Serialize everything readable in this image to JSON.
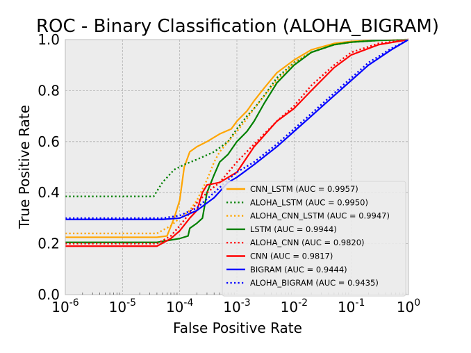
{
  "chart_data": {
    "type": "line",
    "title": "ROC - Binary Classification (ALOHA_BIGRAM)",
    "xlabel": "False Positive Rate",
    "ylabel": "True Positive Rate",
    "x_scale": "log",
    "xlim": [
      1e-06,
      1
    ],
    "ylim": [
      0.0,
      1.0
    ],
    "x_ticks": [
      {
        "value": 1e-06,
        "base": "10",
        "exp": "-6"
      },
      {
        "value": 1e-05,
        "base": "10",
        "exp": "-5"
      },
      {
        "value": 0.0001,
        "base": "10",
        "exp": "-4"
      },
      {
        "value": 0.001,
        "base": "10",
        "exp": "-3"
      },
      {
        "value": 0.01,
        "base": "10",
        "exp": "-2"
      },
      {
        "value": 0.1,
        "base": "10",
        "exp": "-1"
      },
      {
        "value": 1,
        "base": "10",
        "exp": "0"
      }
    ],
    "y_ticks": [
      "0.0",
      "0.2",
      "0.4",
      "0.6",
      "0.8",
      "1.0"
    ],
    "grid": true,
    "legend_position": "lower-right",
    "series": [
      {
        "name": "CNN_LSTM (AUC = 0.9957)",
        "color": "#FFA500",
        "dash": "solid",
        "points": [
          [
            1e-06,
            0.225
          ],
          [
            4e-05,
            0.225
          ],
          [
            6e-05,
            0.23
          ],
          [
            8e-05,
            0.3
          ],
          [
            0.0001,
            0.37
          ],
          [
            0.00012,
            0.5
          ],
          [
            0.00015,
            0.56
          ],
          [
            0.0002,
            0.58
          ],
          [
            0.0003,
            0.6
          ],
          [
            0.0005,
            0.63
          ],
          [
            0.0008,
            0.65
          ],
          [
            0.001,
            0.68
          ],
          [
            0.0015,
            0.72
          ],
          [
            0.002,
            0.76
          ],
          [
            0.003,
            0.81
          ],
          [
            0.005,
            0.87
          ],
          [
            0.01,
            0.92
          ],
          [
            0.02,
            0.96
          ],
          [
            0.05,
            0.985
          ],
          [
            0.1,
            0.993
          ],
          [
            0.3,
            0.998
          ],
          [
            1,
            1.0
          ]
        ]
      },
      {
        "name": "ALOHA_LSTM (AUC = 0.9950)",
        "color": "#008000",
        "dash": "dotted",
        "points": [
          [
            1e-06,
            0.385
          ],
          [
            3.5e-05,
            0.385
          ],
          [
            5e-05,
            0.44
          ],
          [
            8e-05,
            0.49
          ],
          [
            0.00012,
            0.51
          ],
          [
            0.0002,
            0.53
          ],
          [
            0.0004,
            0.56
          ],
          [
            0.0007,
            0.6
          ],
          [
            0.001,
            0.65
          ],
          [
            0.0015,
            0.7
          ],
          [
            0.002,
            0.73
          ],
          [
            0.003,
            0.78
          ],
          [
            0.005,
            0.85
          ],
          [
            0.01,
            0.91
          ],
          [
            0.02,
            0.95
          ],
          [
            0.05,
            0.98
          ],
          [
            0.1,
            0.99
          ],
          [
            0.3,
            0.997
          ],
          [
            1,
            1.0
          ]
        ]
      },
      {
        "name": "ALOHA_CNN_LSTM (AUC = 0.9947)",
        "color": "#FFA500",
        "dash": "dotted",
        "points": [
          [
            1e-06,
            0.24
          ],
          [
            4e-05,
            0.24
          ],
          [
            7e-05,
            0.27
          ],
          [
            0.0001,
            0.3
          ],
          [
            0.00015,
            0.33
          ],
          [
            0.0002,
            0.37
          ],
          [
            0.0003,
            0.45
          ],
          [
            0.0004,
            0.52
          ],
          [
            0.0005,
            0.56
          ],
          [
            0.0007,
            0.6
          ],
          [
            0.001,
            0.64
          ],
          [
            0.0015,
            0.69
          ],
          [
            0.002,
            0.73
          ],
          [
            0.003,
            0.78
          ],
          [
            0.005,
            0.84
          ],
          [
            0.01,
            0.91
          ],
          [
            0.02,
            0.95
          ],
          [
            0.05,
            0.98
          ],
          [
            0.1,
            0.99
          ],
          [
            0.3,
            0.997
          ],
          [
            1,
            1.0
          ]
        ]
      },
      {
        "name": "LSTM (AUC = 0.9944)",
        "color": "#008000",
        "dash": "solid",
        "points": [
          [
            1e-06,
            0.205
          ],
          [
            4e-05,
            0.205
          ],
          [
            0.0001,
            0.22
          ],
          [
            0.00014,
            0.23
          ],
          [
            0.00015,
            0.26
          ],
          [
            0.0002,
            0.28
          ],
          [
            0.00025,
            0.3
          ],
          [
            0.0003,
            0.4
          ],
          [
            0.0004,
            0.47
          ],
          [
            0.0005,
            0.52
          ],
          [
            0.0007,
            0.55
          ],
          [
            0.001,
            0.6
          ],
          [
            0.0015,
            0.64
          ],
          [
            0.002,
            0.68
          ],
          [
            0.003,
            0.75
          ],
          [
            0.005,
            0.83
          ],
          [
            0.01,
            0.9
          ],
          [
            0.02,
            0.95
          ],
          [
            0.05,
            0.98
          ],
          [
            0.1,
            0.99
          ],
          [
            0.3,
            0.997
          ],
          [
            1,
            1.0
          ]
        ]
      },
      {
        "name": "ALOHA_CNN (AUC = 0.9820)",
        "color": "#FF0000",
        "dash": "dotted",
        "points": [
          [
            1e-06,
            0.2
          ],
          [
            4e-05,
            0.2
          ],
          [
            7e-05,
            0.23
          ],
          [
            0.0001,
            0.27
          ],
          [
            0.00015,
            0.32
          ],
          [
            0.0002,
            0.36
          ],
          [
            0.0003,
            0.4
          ],
          [
            0.0005,
            0.44
          ],
          [
            0.001,
            0.52
          ],
          [
            0.002,
            0.59
          ],
          [
            0.005,
            0.68
          ],
          [
            0.01,
            0.74
          ],
          [
            0.02,
            0.82
          ],
          [
            0.05,
            0.9
          ],
          [
            0.1,
            0.95
          ],
          [
            0.3,
            0.985
          ],
          [
            1,
            1.0
          ]
        ]
      },
      {
        "name": "CNN (AUC = 0.9817)",
        "color": "#FF0000",
        "dash": "solid",
        "points": [
          [
            1e-06,
            0.19
          ],
          [
            4e-05,
            0.19
          ],
          [
            7e-05,
            0.22
          ],
          [
            0.0001,
            0.25
          ],
          [
            0.00015,
            0.3
          ],
          [
            0.0002,
            0.33
          ],
          [
            0.00025,
            0.4
          ],
          [
            0.0003,
            0.43
          ],
          [
            0.0005,
            0.44
          ],
          [
            0.001,
            0.48
          ],
          [
            0.002,
            0.58
          ],
          [
            0.005,
            0.68
          ],
          [
            0.01,
            0.73
          ],
          [
            0.02,
            0.8
          ],
          [
            0.05,
            0.89
          ],
          [
            0.1,
            0.94
          ],
          [
            0.3,
            0.98
          ],
          [
            1,
            1.0
          ]
        ]
      },
      {
        "name": "BIGRAM (AUC = 0.9444)",
        "color": "#0000FF",
        "dash": "solid",
        "points": [
          [
            1e-06,
            0.295
          ],
          [
            5e-05,
            0.295
          ],
          [
            0.0001,
            0.3
          ],
          [
            0.0002,
            0.33
          ],
          [
            0.0004,
            0.38
          ],
          [
            0.0007,
            0.44
          ],
          [
            0.001,
            0.46
          ],
          [
            0.002,
            0.51
          ],
          [
            0.005,
            0.58
          ],
          [
            0.01,
            0.64
          ],
          [
            0.02,
            0.7
          ],
          [
            0.05,
            0.78
          ],
          [
            0.1,
            0.84
          ],
          [
            0.2,
            0.9
          ],
          [
            0.5,
            0.96
          ],
          [
            1,
            1.0
          ]
        ]
      },
      {
        "name": "ALOHA_BIGRAM (AUC = 0.9435)",
        "color": "#0000FF",
        "dash": "dotted",
        "points": [
          [
            1e-06,
            0.3
          ],
          [
            5e-05,
            0.3
          ],
          [
            0.0001,
            0.31
          ],
          [
            0.0002,
            0.34
          ],
          [
            0.0004,
            0.4
          ],
          [
            0.0007,
            0.45
          ],
          [
            0.001,
            0.48
          ],
          [
            0.002,
            0.52
          ],
          [
            0.005,
            0.59
          ],
          [
            0.01,
            0.65
          ],
          [
            0.02,
            0.71
          ],
          [
            0.05,
            0.79
          ],
          [
            0.1,
            0.85
          ],
          [
            0.2,
            0.91
          ],
          [
            0.5,
            0.965
          ],
          [
            1,
            1.0
          ]
        ]
      }
    ]
  }
}
